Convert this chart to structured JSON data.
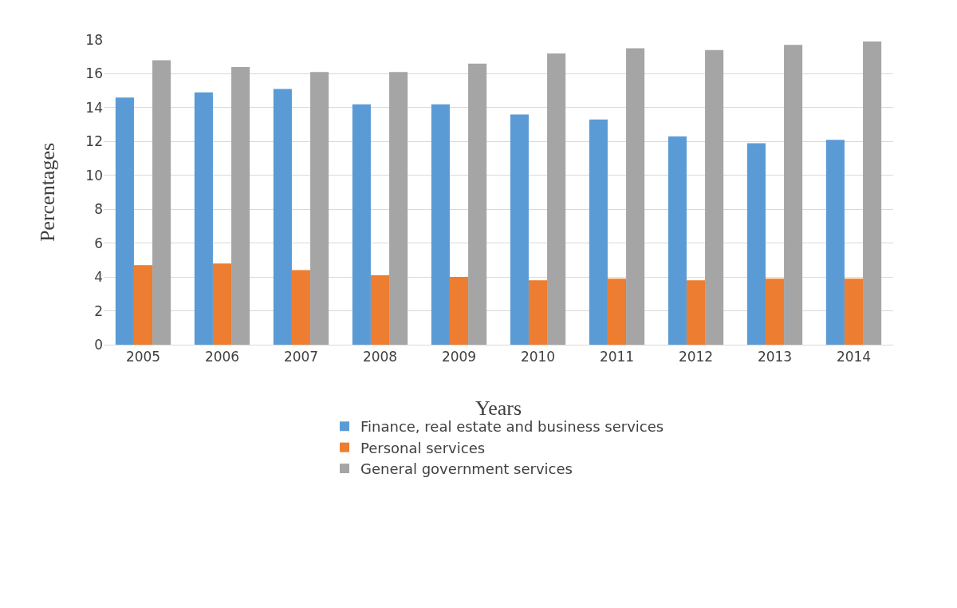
{
  "chart_data": {
    "type": "bar",
    "xlabel": "Years",
    "ylabel": "Percentages",
    "categories": [
      "2005",
      "2006",
      "2007",
      "2008",
      "2009",
      "2010",
      "2011",
      "2012",
      "2013",
      "2014"
    ],
    "series": [
      {
        "name": "Finance, real estate and business services",
        "color": "#5b9bd5",
        "values": [
          14.6,
          14.9,
          15.1,
          14.2,
          14.2,
          13.6,
          13.3,
          12.3,
          11.9,
          12.1
        ]
      },
      {
        "name": "Personal services",
        "color": "#ed7d31",
        "values": [
          4.7,
          4.8,
          4.4,
          4.1,
          4.0,
          3.8,
          3.9,
          3.8,
          3.9,
          3.9
        ]
      },
      {
        "name": "General government services",
        "color": "#a5a5a5",
        "values": [
          16.8,
          16.4,
          16.1,
          16.1,
          16.6,
          17.2,
          17.5,
          17.4,
          17.7,
          17.9
        ]
      }
    ],
    "ylim": [
      0,
      18
    ],
    "yticks": [
      0,
      2,
      4,
      6,
      8,
      10,
      12,
      14,
      16,
      18
    ],
    "grid": "y",
    "legend": "bottom"
  }
}
